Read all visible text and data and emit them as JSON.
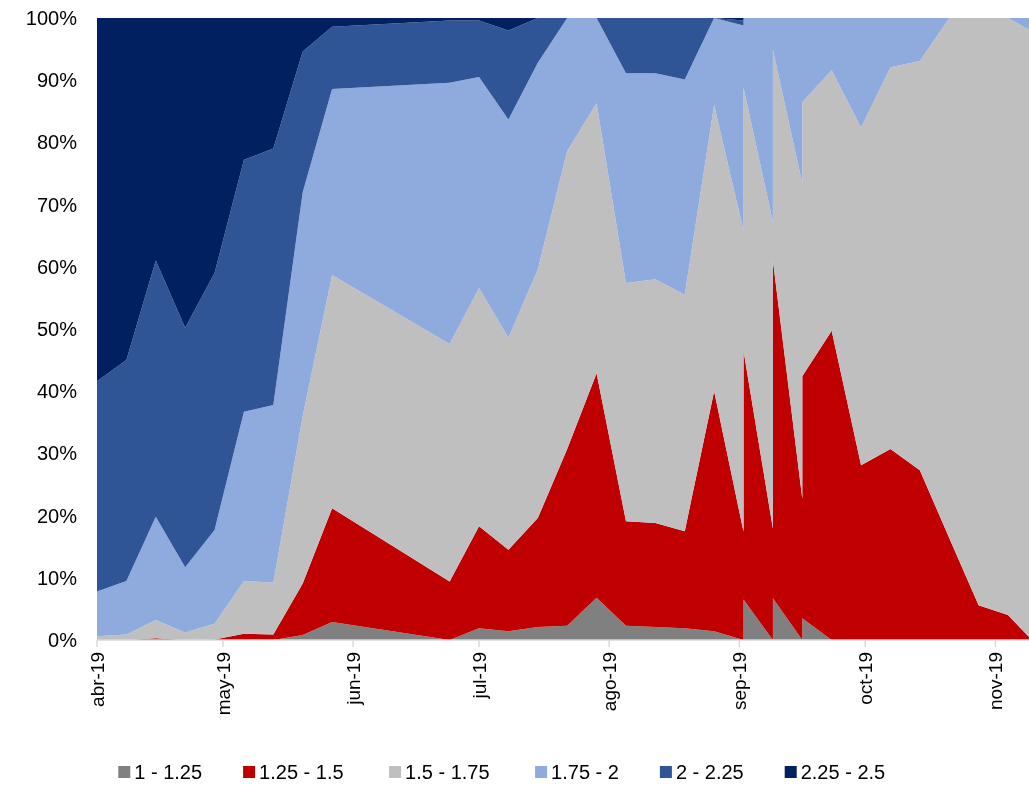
{
  "chart_data": {
    "type": "area",
    "stacked": true,
    "legend": "bottom",
    "grid": false,
    "x": [
      "2019-04-01",
      "2019-04-08",
      "2019-04-15",
      "2019-04-22",
      "2019-04-29",
      "2019-05-06",
      "2019-05-13",
      "2019-05-20",
      "2019-05-27",
      "2019-06-24",
      "2019-07-01",
      "2019-07-08",
      "2019-07-15",
      "2019-07-22",
      "2019-07-29",
      "2019-08-05",
      "2019-08-12",
      "2019-08-19",
      "2019-08-26",
      "2019-09-02",
      "2019-09-02",
      "2019-09-09",
      "2019-09-09",
      "2019-09-16",
      "2019-09-16",
      "2019-09-23",
      "2019-09-30",
      "2019-10-07",
      "2019-10-14",
      "2019-10-21",
      "2019-10-28",
      "2019-11-04",
      "2019-11-09"
    ],
    "xlim": [
      "2019-04-01",
      "2019-11-09"
    ],
    "xticks": [
      {
        "value": "2019-04-01",
        "label": "abr-19"
      },
      {
        "value": "2019-05-01",
        "label": "may-19"
      },
      {
        "value": "2019-06-01",
        "label": "jun-19"
      },
      {
        "value": "2019-07-01",
        "label": "jul-19"
      },
      {
        "value": "2019-08-01",
        "label": "ago-19"
      },
      {
        "value": "2019-09-01",
        "label": "sep-19"
      },
      {
        "value": "2019-10-01",
        "label": "oct-19"
      },
      {
        "value": "2019-11-01",
        "label": "nov-19"
      }
    ],
    "ylim": [
      0,
      100
    ],
    "yticks": [
      {
        "value": 0,
        "label": "0%"
      },
      {
        "value": 10,
        "label": "10%"
      },
      {
        "value": 20,
        "label": "20%"
      },
      {
        "value": 30,
        "label": "30%"
      },
      {
        "value": 40,
        "label": "40%"
      },
      {
        "value": 50,
        "label": "50%"
      },
      {
        "value": 60,
        "label": "60%"
      },
      {
        "value": 70,
        "label": "70%"
      },
      {
        "value": 80,
        "label": "80%"
      },
      {
        "value": 90,
        "label": "90%"
      },
      {
        "value": 100,
        "label": "100%"
      }
    ],
    "series": [
      {
        "name": "1 - 1.25",
        "color": "#808080",
        "values": [
          0,
          0,
          0,
          0,
          0,
          0,
          0,
          0.8,
          2.9,
          0,
          1.9,
          1.4,
          2.1,
          2.3,
          6.8,
          2.3,
          2.1,
          1.9,
          1.4,
          0,
          6.5,
          0,
          6.7,
          0,
          3.5,
          0,
          0,
          0,
          0,
          0,
          0,
          0,
          0
        ]
      },
      {
        "name": "1.25 - 1.5",
        "color": "#c00000",
        "values": [
          0,
          0,
          0.3,
          0,
          0.1,
          1.0,
          0.9,
          8.3,
          18.3,
          9.4,
          16.4,
          13.1,
          17.5,
          28.4,
          36.1,
          16.8,
          16.7,
          15.6,
          38.6,
          17.4,
          40.0,
          17.9,
          54.3,
          22.7,
          38.9,
          49.7,
          28.1,
          30.7,
          27.3,
          16.4,
          5.6,
          4.0,
          0.5
        ]
      },
      {
        "name": "1.5 - 1.75",
        "color": "#bfbfbf",
        "values": [
          0.6,
          0.9,
          2.9,
          1.2,
          2.5,
          8.5,
          8.3,
          26.9,
          37.5,
          38.2,
          38.3,
          34.1,
          40.0,
          47.9,
          43.4,
          38.3,
          39.2,
          38.0,
          46.0,
          48.4,
          42.3,
          49.3,
          33.9,
          50.7,
          44.1,
          41.9,
          54.3,
          61.4,
          65.8,
          83.6,
          94.4,
          96.0,
          97.6
        ]
      },
      {
        "name": "1.75 - 2",
        "color": "#8faadc",
        "values": [
          7.2,
          8.6,
          16.6,
          10.5,
          15.1,
          27.2,
          28.6,
          36.0,
          29.9,
          42.0,
          33.9,
          35.1,
          33.2,
          21.4,
          13.7,
          33.7,
          33.1,
          34.6,
          14.0,
          33.0,
          11.2,
          32.8,
          5.1,
          26.6,
          13.5,
          8.4,
          17.6,
          7.9,
          6.9,
          0,
          0,
          0,
          1.9
        ]
      },
      {
        "name": "2 - 2.25",
        "color": "#2f5597",
        "values": [
          33.8,
          35.5,
          41.2,
          38.5,
          41.3,
          40.5,
          41.2,
          22.6,
          10.0,
          10.0,
          9.1,
          14.3,
          7.2,
          0,
          0,
          8.9,
          8.9,
          9.9,
          0,
          0.8,
          0,
          0,
          0,
          0,
          0,
          0,
          0,
          0,
          0,
          0,
          0,
          0,
          0
        ]
      },
      {
        "name": "2.25 - 2.5",
        "color": "#002060",
        "values": [
          58.4,
          55.0,
          39.0,
          49.8,
          41.0,
          22.8,
          21.0,
          5.4,
          1.4,
          0.4,
          0.4,
          2.0,
          0,
          0,
          0,
          0,
          0,
          0,
          0,
          0.4,
          0,
          0,
          0,
          0,
          0,
          0,
          0,
          0,
          0,
          0,
          0,
          0,
          0
        ]
      }
    ]
  }
}
